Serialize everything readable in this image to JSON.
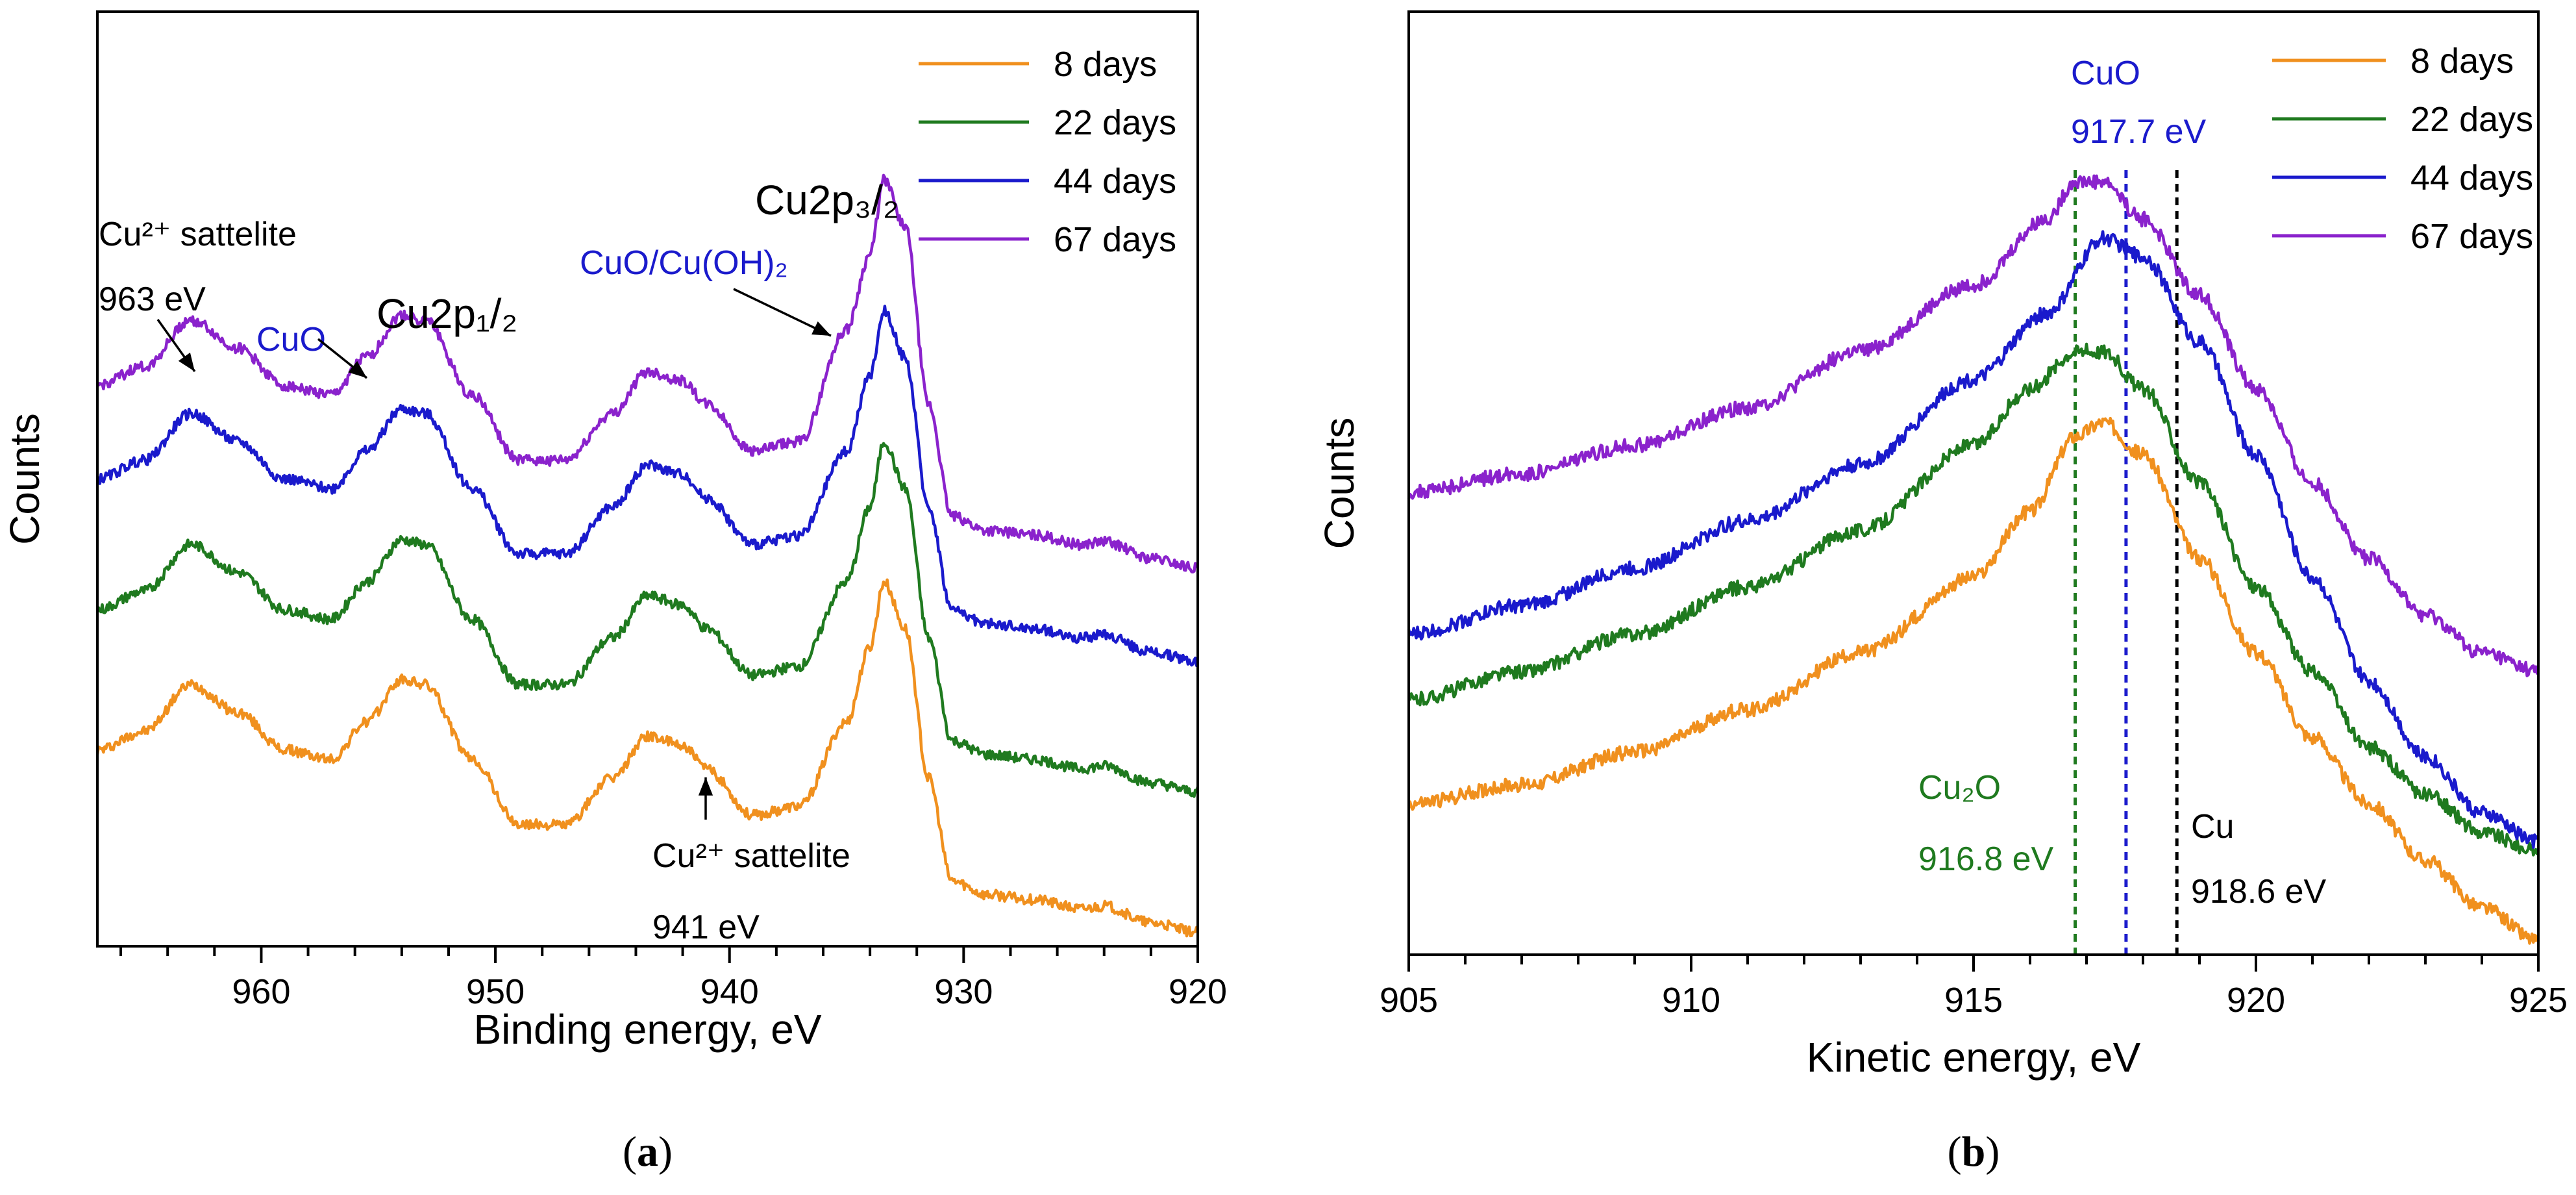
{
  "chart_data": [
    {
      "panel_label_pre": "(",
      "panel_label": "a",
      "panel_label_post": ")",
      "type": "line",
      "xlabel": "Binding energy, eV",
      "ylabel": "Counts",
      "xlim": [
        967,
        920
      ],
      "ylim": [
        0,
        100
      ],
      "x_ticks": [
        960,
        950,
        940,
        930,
        920
      ],
      "x_tick_labels": [
        "960",
        "950",
        "940",
        "930",
        "920"
      ],
      "legend_position": "top-right",
      "series": [
        {
          "name": "8 days",
          "color": "#f0901e",
          "offset": 0,
          "points": [
            [
              967,
              21
            ],
            [
              965,
              23
            ],
            [
              963,
              28
            ],
            [
              961,
              25
            ],
            [
              959,
              21
            ],
            [
              957,
              20
            ],
            [
              955.5,
              24
            ],
            [
              954,
              28.5
            ],
            [
              953,
              28
            ],
            [
              951,
              20
            ],
            [
              949,
              13
            ],
            [
              947,
              13
            ],
            [
              945,
              18
            ],
            [
              943.5,
              22.5
            ],
            [
              942,
              21.5
            ],
            [
              941,
              19
            ],
            [
              939,
              14
            ],
            [
              937,
              15
            ],
            [
              935,
              24
            ],
            [
              934,
              32
            ],
            [
              933.4,
              39
            ],
            [
              932.5,
              34
            ],
            [
              931.5,
              18
            ],
            [
              930.5,
              7
            ],
            [
              929,
              5.5
            ],
            [
              927,
              5
            ],
            [
              925,
              4
            ],
            [
              924,
              4.3
            ],
            [
              922,
              2.5
            ],
            [
              920,
              1.5
            ]
          ]
        },
        {
          "name": "22 days",
          "color": "#1f7a1f",
          "offset": 0,
          "points": [
            [
              967,
              36
            ],
            [
              965,
              38
            ],
            [
              963,
              43
            ],
            [
              961,
              40
            ],
            [
              959,
              36
            ],
            [
              957,
              35
            ],
            [
              955.5,
              39
            ],
            [
              954,
              43.5
            ],
            [
              953,
              43
            ],
            [
              951,
              35
            ],
            [
              949,
              28
            ],
            [
              947,
              28
            ],
            [
              945,
              33
            ],
            [
              943.5,
              37.5
            ],
            [
              942,
              36.5
            ],
            [
              941,
              34
            ],
            [
              939,
              29
            ],
            [
              937,
              30
            ],
            [
              935,
              39
            ],
            [
              934,
              47
            ],
            [
              933.4,
              54
            ],
            [
              932.5,
              49
            ],
            [
              931.5,
              33
            ],
            [
              930.5,
              22
            ],
            [
              929,
              20.5
            ],
            [
              927,
              20
            ],
            [
              925,
              19
            ],
            [
              924,
              19.3
            ],
            [
              922,
              17.5
            ],
            [
              920,
              16.5
            ]
          ]
        },
        {
          "name": "44 days",
          "color": "#1a1acc",
          "offset": 0,
          "points": [
            [
              967,
              50
            ],
            [
              965,
              52
            ],
            [
              963,
              57
            ],
            [
              961,
              54
            ],
            [
              959,
              50
            ],
            [
              957,
              49
            ],
            [
              955.5,
              53
            ],
            [
              954,
              57.5
            ],
            [
              953,
              57
            ],
            [
              951,
              49
            ],
            [
              949,
              42
            ],
            [
              947,
              42
            ],
            [
              945,
              47
            ],
            [
              943.5,
              51.5
            ],
            [
              942,
              50.5
            ],
            [
              941,
              48
            ],
            [
              939,
              43
            ],
            [
              937,
              44
            ],
            [
              935,
              53
            ],
            [
              934,
              61
            ],
            [
              933.4,
              68
            ],
            [
              932.5,
              63
            ],
            [
              931.5,
              47
            ],
            [
              930.5,
              36
            ],
            [
              929,
              34.5
            ],
            [
              927,
              34
            ],
            [
              925,
              33
            ],
            [
              924,
              33.3
            ],
            [
              922,
              31.5
            ],
            [
              920,
              30.5
            ]
          ]
        },
        {
          "name": "67 days",
          "color": "#8a22cc",
          "offset": 0,
          "points": [
            [
              967,
              60
            ],
            [
              965,
              62
            ],
            [
              963,
              67
            ],
            [
              961,
              64
            ],
            [
              959,
              60
            ],
            [
              957,
              59
            ],
            [
              955.5,
              63
            ],
            [
              954,
              67.5
            ],
            [
              953,
              67
            ],
            [
              951,
              59
            ],
            [
              949,
              52
            ],
            [
              947,
              52
            ],
            [
              945,
              57
            ],
            [
              943.5,
              61.5
            ],
            [
              942,
              60.5
            ],
            [
              941,
              58
            ],
            [
              939,
              53
            ],
            [
              937,
              54
            ],
            [
              935,
              66
            ],
            [
              934,
              74
            ],
            [
              933.4,
              82
            ],
            [
              932.5,
              77
            ],
            [
              931.5,
              58
            ],
            [
              930.5,
              46
            ],
            [
              929,
              44.5
            ],
            [
              927,
              44
            ],
            [
              925,
              43
            ],
            [
              924,
              43.3
            ],
            [
              922,
              41.5
            ],
            [
              920,
              40.5
            ]
          ]
        }
      ],
      "annotations": [
        {
          "lines": [
            "Cu²⁺ sattelite",
            "963 eV"
          ],
          "color": "#000000",
          "arrow_to": [
            963,
            67
          ]
        },
        {
          "lines": [
            "CuO"
          ],
          "color": "#1a1acc",
          "arrow_to": [
            955.5,
            63
          ]
        },
        {
          "lines": [
            "Cu2p₁/₂"
          ],
          "color": "#000000"
        },
        {
          "lines": [
            "CuO/Cu(OH)₂"
          ],
          "color": "#1a1acc",
          "arrow_to": [
            935,
            66
          ]
        },
        {
          "lines": [
            "Cu2p₃/₂"
          ],
          "color": "#000000"
        },
        {
          "lines": [
            "Cu²⁺ sattelite",
            "941 eV"
          ],
          "color": "#000000",
          "arrow_to": [
            941,
            21
          ]
        }
      ]
    },
    {
      "panel_label_pre": "(",
      "panel_label": "b",
      "panel_label_post": ")",
      "type": "line",
      "xlabel": "Kinetic energy, eV",
      "ylabel": "Counts",
      "xlim": [
        905,
        925
      ],
      "ylim": [
        0,
        100
      ],
      "x_ticks": [
        905,
        910,
        915,
        920,
        925
      ],
      "x_tick_labels": [
        "905",
        "910",
        "915",
        "920",
        "925"
      ],
      "legend_position": "top-right",
      "series": [
        {
          "name": "8 days",
          "color": "#f0901e",
          "points": [
            [
              905,
              16
            ],
            [
              907,
              18
            ],
            [
              909,
              21.5
            ],
            [
              911,
              26
            ],
            [
              913,
              32
            ],
            [
              915,
              40
            ],
            [
              916,
              47
            ],
            [
              916.8,
              55
            ],
            [
              917.3,
              56.5
            ],
            [
              918,
              53
            ],
            [
              919,
              42
            ],
            [
              920,
              32
            ],
            [
              921,
              23
            ],
            [
              922,
              16
            ],
            [
              923,
              10
            ],
            [
              924,
              5
            ],
            [
              925,
              1.5
            ]
          ]
        },
        {
          "name": "22 days",
          "color": "#1f7a1f",
          "points": [
            [
              905,
              27
            ],
            [
              907,
              30
            ],
            [
              909,
              34
            ],
            [
              911,
              39
            ],
            [
              913,
              45
            ],
            [
              915,
              54
            ],
            [
              916,
              60
            ],
            [
              916.8,
              64
            ],
            [
              917.3,
              64
            ],
            [
              918,
              60
            ],
            [
              919,
              50
            ],
            [
              920,
              39
            ],
            [
              921,
              30
            ],
            [
              922,
              22
            ],
            [
              923,
              17
            ],
            [
              924,
              13
            ],
            [
              925,
              11
            ]
          ]
        },
        {
          "name": "44 days",
          "color": "#1a1acc",
          "points": [
            [
              905,
              34
            ],
            [
              907,
              37
            ],
            [
              909,
              41
            ],
            [
              911,
              46
            ],
            [
              913,
              52
            ],
            [
              915,
              61
            ],
            [
              916.3,
              68
            ],
            [
              917.3,
              76
            ],
            [
              918,
              74
            ],
            [
              919,
              65
            ],
            [
              920,
              53
            ],
            [
              921,
              40
            ],
            [
              922,
              29
            ],
            [
              923,
              21
            ],
            [
              924,
              15
            ],
            [
              925,
              12
            ]
          ]
        },
        {
          "name": "67 days",
          "color": "#8a22cc",
          "points": [
            [
              905,
              49
            ],
            [
              907,
              51
            ],
            [
              909,
              54
            ],
            [
              911,
              58
            ],
            [
              913,
              64
            ],
            [
              915,
              71
            ],
            [
              916.3,
              78
            ],
            [
              916.8,
              82
            ],
            [
              917.3,
              82
            ],
            [
              918,
              78
            ],
            [
              919,
              70
            ],
            [
              920,
              60
            ],
            [
              921,
              50
            ],
            [
              922,
              42
            ],
            [
              923,
              36
            ],
            [
              924,
              32
            ],
            [
              925,
              30
            ]
          ]
        }
      ],
      "ref_lines": [
        {
          "x": 916.8,
          "color": "#1f7a1f"
        },
        {
          "x": 917.7,
          "color": "#1a1acc"
        },
        {
          "x": 918.6,
          "color": "#000000"
        }
      ],
      "annotations": [
        {
          "lines": [
            "CuO",
            "917.7 eV"
          ],
          "color": "#1a1acc"
        },
        {
          "lines": [
            "Cu₂O",
            "916.8 eV"
          ],
          "color": "#1f7a1f"
        },
        {
          "lines": [
            "Cu",
            "918.6 eV"
          ],
          "color": "#000000"
        }
      ]
    }
  ]
}
